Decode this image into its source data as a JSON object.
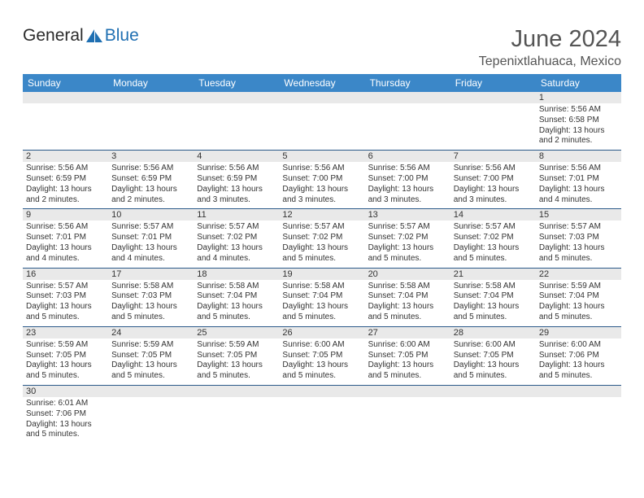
{
  "logo": {
    "text1": "General",
    "text2": "Blue",
    "sail_color": "#1f6fb2"
  },
  "title": "June 2024",
  "location": "Tepenixtlahuaca, Mexico",
  "colors": {
    "header_bg": "#3b87c8",
    "header_fg": "#ffffff",
    "daynum_bg": "#e9e9e9",
    "cell_border": "#2c5a8a",
    "text": "#333333"
  },
  "weekdays": [
    "Sunday",
    "Monday",
    "Tuesday",
    "Wednesday",
    "Thursday",
    "Friday",
    "Saturday"
  ],
  "weeks": [
    [
      null,
      null,
      null,
      null,
      null,
      null,
      {
        "d": "1",
        "sr": "Sunrise: 5:56 AM",
        "ss": "Sunset: 6:58 PM",
        "dl": "Daylight: 13 hours and 2 minutes."
      }
    ],
    [
      {
        "d": "2",
        "sr": "Sunrise: 5:56 AM",
        "ss": "Sunset: 6:59 PM",
        "dl": "Daylight: 13 hours and 2 minutes."
      },
      {
        "d": "3",
        "sr": "Sunrise: 5:56 AM",
        "ss": "Sunset: 6:59 PM",
        "dl": "Daylight: 13 hours and 2 minutes."
      },
      {
        "d": "4",
        "sr": "Sunrise: 5:56 AM",
        "ss": "Sunset: 6:59 PM",
        "dl": "Daylight: 13 hours and 3 minutes."
      },
      {
        "d": "5",
        "sr": "Sunrise: 5:56 AM",
        "ss": "Sunset: 7:00 PM",
        "dl": "Daylight: 13 hours and 3 minutes."
      },
      {
        "d": "6",
        "sr": "Sunrise: 5:56 AM",
        "ss": "Sunset: 7:00 PM",
        "dl": "Daylight: 13 hours and 3 minutes."
      },
      {
        "d": "7",
        "sr": "Sunrise: 5:56 AM",
        "ss": "Sunset: 7:00 PM",
        "dl": "Daylight: 13 hours and 3 minutes."
      },
      {
        "d": "8",
        "sr": "Sunrise: 5:56 AM",
        "ss": "Sunset: 7:01 PM",
        "dl": "Daylight: 13 hours and 4 minutes."
      }
    ],
    [
      {
        "d": "9",
        "sr": "Sunrise: 5:56 AM",
        "ss": "Sunset: 7:01 PM",
        "dl": "Daylight: 13 hours and 4 minutes."
      },
      {
        "d": "10",
        "sr": "Sunrise: 5:57 AM",
        "ss": "Sunset: 7:01 PM",
        "dl": "Daylight: 13 hours and 4 minutes."
      },
      {
        "d": "11",
        "sr": "Sunrise: 5:57 AM",
        "ss": "Sunset: 7:02 PM",
        "dl": "Daylight: 13 hours and 4 minutes."
      },
      {
        "d": "12",
        "sr": "Sunrise: 5:57 AM",
        "ss": "Sunset: 7:02 PM",
        "dl": "Daylight: 13 hours and 5 minutes."
      },
      {
        "d": "13",
        "sr": "Sunrise: 5:57 AM",
        "ss": "Sunset: 7:02 PM",
        "dl": "Daylight: 13 hours and 5 minutes."
      },
      {
        "d": "14",
        "sr": "Sunrise: 5:57 AM",
        "ss": "Sunset: 7:02 PM",
        "dl": "Daylight: 13 hours and 5 minutes."
      },
      {
        "d": "15",
        "sr": "Sunrise: 5:57 AM",
        "ss": "Sunset: 7:03 PM",
        "dl": "Daylight: 13 hours and 5 minutes."
      }
    ],
    [
      {
        "d": "16",
        "sr": "Sunrise: 5:57 AM",
        "ss": "Sunset: 7:03 PM",
        "dl": "Daylight: 13 hours and 5 minutes."
      },
      {
        "d": "17",
        "sr": "Sunrise: 5:58 AM",
        "ss": "Sunset: 7:03 PM",
        "dl": "Daylight: 13 hours and 5 minutes."
      },
      {
        "d": "18",
        "sr": "Sunrise: 5:58 AM",
        "ss": "Sunset: 7:04 PM",
        "dl": "Daylight: 13 hours and 5 minutes."
      },
      {
        "d": "19",
        "sr": "Sunrise: 5:58 AM",
        "ss": "Sunset: 7:04 PM",
        "dl": "Daylight: 13 hours and 5 minutes."
      },
      {
        "d": "20",
        "sr": "Sunrise: 5:58 AM",
        "ss": "Sunset: 7:04 PM",
        "dl": "Daylight: 13 hours and 5 minutes."
      },
      {
        "d": "21",
        "sr": "Sunrise: 5:58 AM",
        "ss": "Sunset: 7:04 PM",
        "dl": "Daylight: 13 hours and 5 minutes."
      },
      {
        "d": "22",
        "sr": "Sunrise: 5:59 AM",
        "ss": "Sunset: 7:04 PM",
        "dl": "Daylight: 13 hours and 5 minutes."
      }
    ],
    [
      {
        "d": "23",
        "sr": "Sunrise: 5:59 AM",
        "ss": "Sunset: 7:05 PM",
        "dl": "Daylight: 13 hours and 5 minutes."
      },
      {
        "d": "24",
        "sr": "Sunrise: 5:59 AM",
        "ss": "Sunset: 7:05 PM",
        "dl": "Daylight: 13 hours and 5 minutes."
      },
      {
        "d": "25",
        "sr": "Sunrise: 5:59 AM",
        "ss": "Sunset: 7:05 PM",
        "dl": "Daylight: 13 hours and 5 minutes."
      },
      {
        "d": "26",
        "sr": "Sunrise: 6:00 AM",
        "ss": "Sunset: 7:05 PM",
        "dl": "Daylight: 13 hours and 5 minutes."
      },
      {
        "d": "27",
        "sr": "Sunrise: 6:00 AM",
        "ss": "Sunset: 7:05 PM",
        "dl": "Daylight: 13 hours and 5 minutes."
      },
      {
        "d": "28",
        "sr": "Sunrise: 6:00 AM",
        "ss": "Sunset: 7:05 PM",
        "dl": "Daylight: 13 hours and 5 minutes."
      },
      {
        "d": "29",
        "sr": "Sunrise: 6:00 AM",
        "ss": "Sunset: 7:06 PM",
        "dl": "Daylight: 13 hours and 5 minutes."
      }
    ],
    [
      {
        "d": "30",
        "sr": "Sunrise: 6:01 AM",
        "ss": "Sunset: 7:06 PM",
        "dl": "Daylight: 13 hours and 5 minutes."
      },
      null,
      null,
      null,
      null,
      null,
      null
    ]
  ]
}
